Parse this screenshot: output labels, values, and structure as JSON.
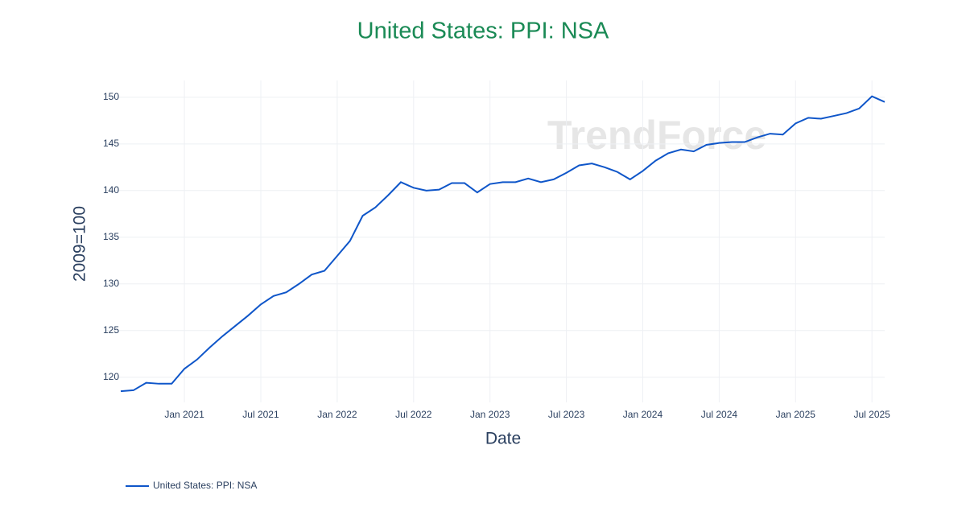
{
  "chart_data": {
    "type": "line",
    "title": "United States: PPI: NSA",
    "x_label": "Date",
    "y_label": "2009=100",
    "watermark": "TrendForce",
    "x": [
      "2020-08",
      "2020-09",
      "2020-10",
      "2020-11",
      "2020-12",
      "2021-01",
      "2021-02",
      "2021-03",
      "2021-04",
      "2021-05",
      "2021-06",
      "2021-07",
      "2021-08",
      "2021-09",
      "2021-10",
      "2021-11",
      "2021-12",
      "2022-01",
      "2022-02",
      "2022-03",
      "2022-04",
      "2022-05",
      "2022-06",
      "2022-07",
      "2022-08",
      "2022-09",
      "2022-10",
      "2022-11",
      "2022-12",
      "2023-01",
      "2023-02",
      "2023-03",
      "2023-04",
      "2023-05",
      "2023-06",
      "2023-07",
      "2023-08",
      "2023-09",
      "2023-10",
      "2023-11",
      "2023-12",
      "2024-01",
      "2024-02",
      "2024-03",
      "2024-04",
      "2024-05",
      "2024-06",
      "2024-07",
      "2024-08",
      "2024-09",
      "2024-10",
      "2024-11",
      "2024-12",
      "2025-01",
      "2025-02",
      "2025-03",
      "2025-04",
      "2025-05",
      "2025-06",
      "2025-07",
      "2025-08"
    ],
    "series": [
      {
        "name": "United States: PPI: NSA",
        "color": "#0f56c9",
        "values": [
          118.5,
          118.6,
          119.4,
          119.3,
          119.3,
          120.9,
          121.9,
          123.2,
          124.4,
          125.5,
          126.6,
          127.8,
          128.7,
          129.1,
          130.0,
          131.0,
          131.4,
          133.0,
          134.6,
          137.3,
          138.2,
          139.5,
          140.9,
          140.3,
          140.0,
          140.1,
          140.8,
          140.8,
          139.8,
          140.7,
          140.9,
          140.9,
          141.3,
          140.9,
          141.2,
          141.9,
          142.7,
          142.9,
          142.5,
          142.0,
          141.2,
          142.1,
          143.2,
          144.0,
          144.4,
          144.2,
          144.9,
          145.1,
          145.2,
          145.2,
          145.7,
          146.1,
          146.0,
          147.2,
          147.8,
          147.7,
          148.0,
          148.3,
          148.8,
          150.1,
          149.5
        ]
      }
    ],
    "xlim": [
      "2020-08",
      "2025-08"
    ],
    "xticks": [
      {
        "value": "2021-01",
        "label": "Jan 2021"
      },
      {
        "value": "2021-07",
        "label": "Jul 2021"
      },
      {
        "value": "2022-01",
        "label": "Jan 2022"
      },
      {
        "value": "2022-07",
        "label": "Jul 2022"
      },
      {
        "value": "2023-01",
        "label": "Jan 2023"
      },
      {
        "value": "2023-07",
        "label": "Jul 2023"
      },
      {
        "value": "2024-01",
        "label": "Jan 2024"
      },
      {
        "value": "2024-07",
        "label": "Jul 2024"
      },
      {
        "value": "2025-01",
        "label": "Jan 2025"
      },
      {
        "value": "2025-07",
        "label": "Jul 2025"
      }
    ],
    "ylim": [
      117.3,
      151.8
    ],
    "yticks": [
      120,
      125,
      130,
      135,
      140,
      145,
      150
    ],
    "grid": true
  }
}
